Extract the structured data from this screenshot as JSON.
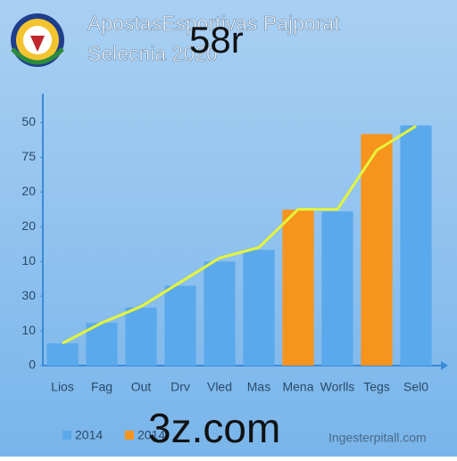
{
  "header": {
    "title": "ApostasEsportivas Pajporat",
    "subtitle": "Selecnia 2020",
    "overlay": "58r"
  },
  "chart_data": {
    "type": "bar",
    "categories": [
      "Lios",
      "Fag",
      "Out",
      "Drv",
      "Vled",
      "Mas",
      "Mena",
      "Worlls",
      "Tegs",
      "Sel0"
    ],
    "series": [
      {
        "name": "2014",
        "color": "#5aa9ec",
        "values": [
          0.64,
          1.23,
          1.67,
          2.3,
          3.0,
          3.33,
          null,
          4.44,
          null,
          6.92
        ]
      },
      {
        "name": "2014",
        "color": "#f7941d",
        "values": [
          null,
          null,
          null,
          null,
          null,
          null,
          4.49,
          null,
          6.67,
          null
        ]
      },
      {
        "type": "line",
        "color": "#e4f53a",
        "values": [
          0.64,
          1.23,
          1.7,
          2.4,
          3.1,
          3.4,
          4.5,
          4.5,
          6.2,
          6.9
        ]
      }
    ],
    "ylim": [
      0,
      7.5
    ],
    "yticks": [
      0,
      {
        "value": 1,
        "label": "10"
      },
      {
        "value": 2,
        "label": "30"
      },
      {
        "value": 3,
        "label": "10"
      },
      {
        "value": 4,
        "label": "20"
      },
      {
        "value": 5,
        "label": "20"
      },
      {
        "value": 6,
        "label": "75"
      },
      {
        "value": 7,
        "label": "50"
      }
    ]
  },
  "footer": {
    "watermark": "3z.com",
    "site": "Ingesterpitall.com"
  }
}
